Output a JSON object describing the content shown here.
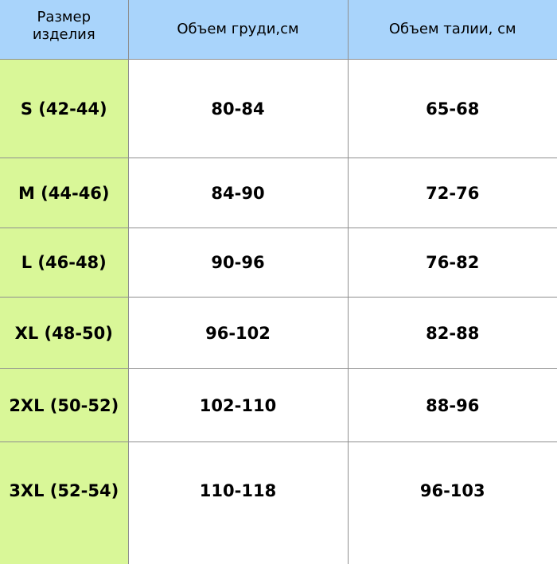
{
  "colors": {
    "header_bg": "#a9d4fb",
    "size_col_bg": "#d9f798",
    "border": "#8f8f8f"
  },
  "headers": {
    "size": "Размер изделия",
    "chest": "Объем груди,см",
    "waist": "Объем талии, см"
  },
  "rows": [
    {
      "size": "S (42-44)",
      "chest": "80-84",
      "waist": "65-68"
    },
    {
      "size": "M (44-46)",
      "chest": "84-90",
      "waist": "72-76"
    },
    {
      "size": "L (46-48)",
      "chest": "90-96",
      "waist": "76-82"
    },
    {
      "size": "XL (48-50)",
      "chest": "96-102",
      "waist": "82-88"
    },
    {
      "size": "2XL (50-52)",
      "chest": "102-110",
      "waist": "88-96"
    },
    {
      "size": "3XL (52-54)",
      "chest": "110-118",
      "waist": "96-103"
    }
  ]
}
